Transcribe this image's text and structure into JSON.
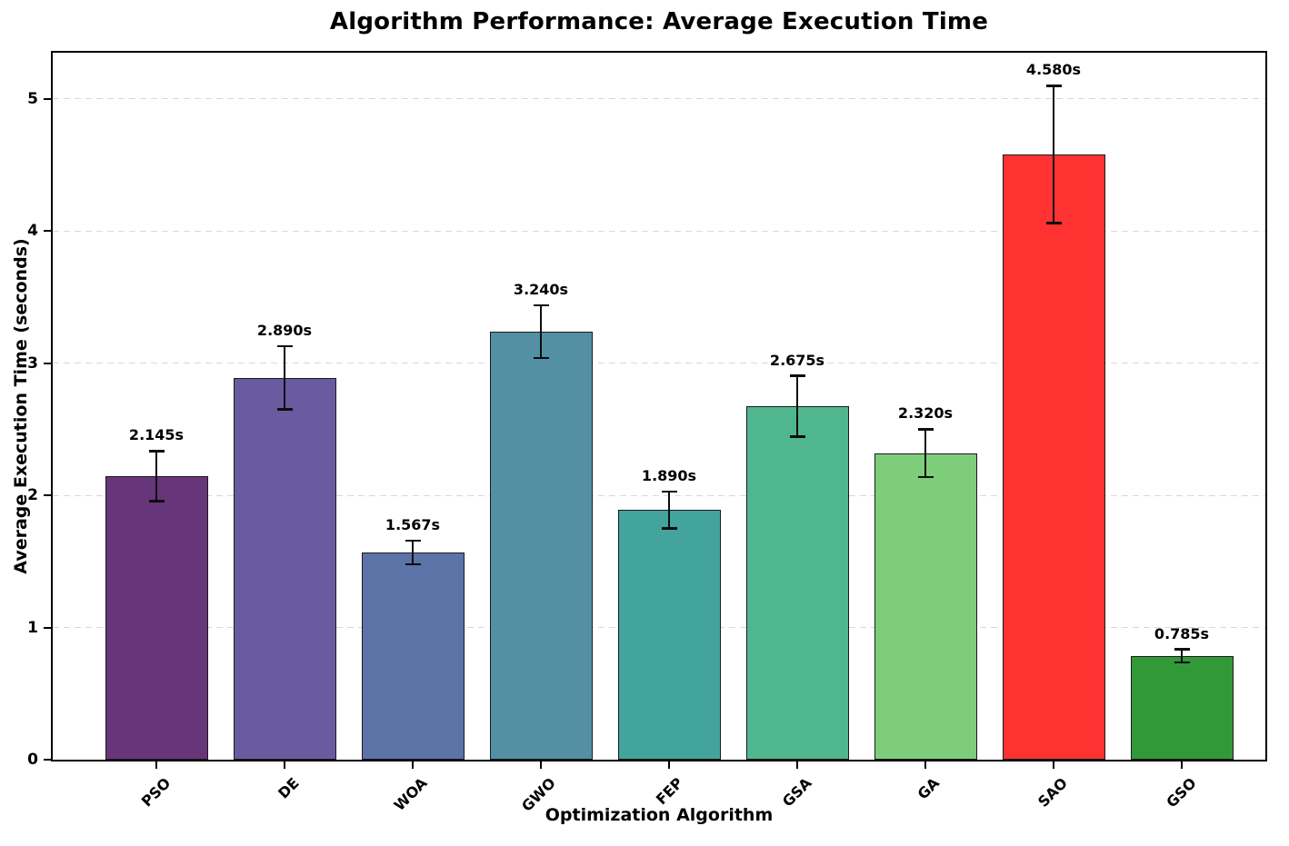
{
  "chart_data": {
    "type": "bar",
    "title": "Algorithm Performance: Average Execution Time",
    "xlabel": "Optimization Algorithm",
    "ylabel": "Average Execution Time (seconds)",
    "categories": [
      "PSO",
      "DE",
      "WOA",
      "GWO",
      "FEP",
      "GSA",
      "GA",
      "SAO",
      "GSO"
    ],
    "values": [
      2.145,
      2.89,
      1.567,
      3.24,
      1.89,
      2.675,
      2.32,
      4.58,
      0.785
    ],
    "errors": [
      0.19,
      0.24,
      0.09,
      0.2,
      0.14,
      0.23,
      0.18,
      0.52,
      0.05
    ],
    "value_labels": [
      "2.145s",
      "2.890s",
      "1.567s",
      "3.240s",
      "1.890s",
      "2.675s",
      "2.320s",
      "4.580s",
      "0.785s"
    ],
    "bar_colors": [
      "#673579",
      "#6a5ba1",
      "#5c73a8",
      "#5390a4",
      "#43a39d",
      "#50b690",
      "#7ecd7b",
      "#ff3232",
      "#329939"
    ],
    "bar_edge_color": "#1a1a1a",
    "error_bar_color": "#0d0d0d",
    "yticks": [
      0,
      1,
      2,
      3,
      4,
      5
    ],
    "ytick_labels": [
      "0",
      "1",
      "2",
      "3",
      "4",
      "5"
    ],
    "ylim": [
      0,
      5.35
    ],
    "grid": "horizontal-dashed",
    "grid_color": "#d9d9d9",
    "background_color": "#ffffff",
    "legend": "none"
  }
}
